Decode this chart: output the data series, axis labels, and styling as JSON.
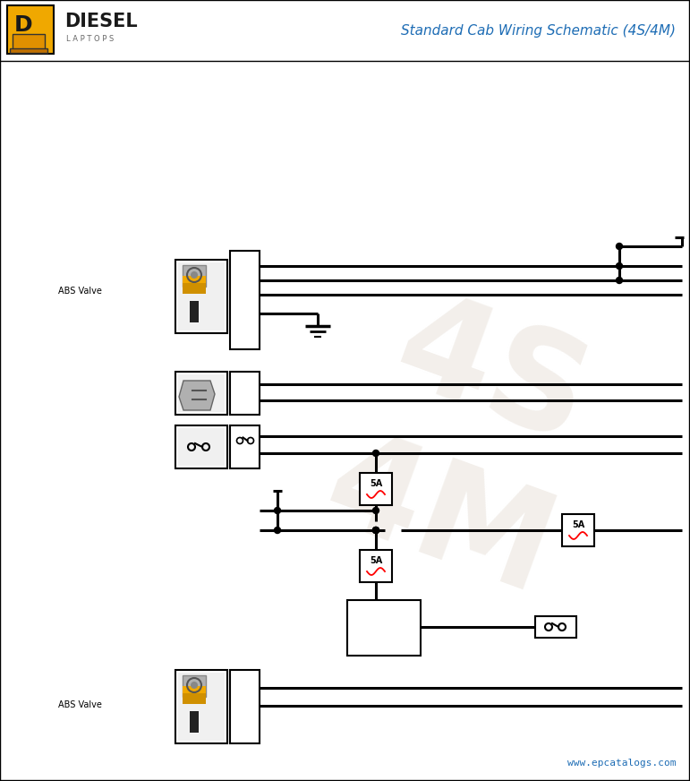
{
  "title": "Standard Cab Wiring Schematic (4S/4M)",
  "title_color": "#1e6db5",
  "bg_color": "#ffffff",
  "border_color": "#000000",
  "logo_bg": "#f0a800",
  "website": "www.epcatalogs.com",
  "abs_valve_label": "ABS Valve",
  "fuse_label": "5A",
  "watermark_color": "#e8e0d8"
}
